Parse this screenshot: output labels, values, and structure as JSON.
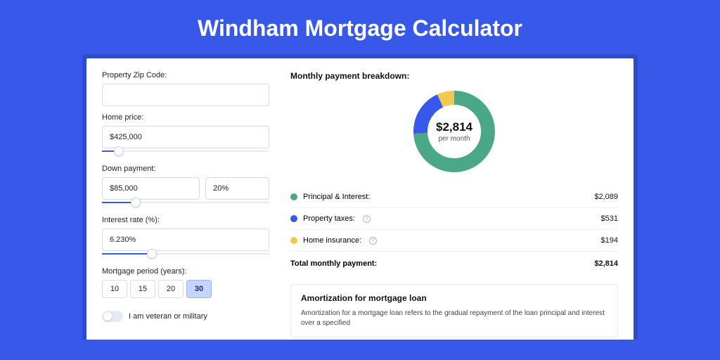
{
  "title": "Windham Mortgage Calculator",
  "colors": {
    "page_bg": "#3858e9",
    "card_bg": "#ffffff",
    "slider_fill": "#3858e9",
    "principal": "#4aa886",
    "taxes": "#3858e9",
    "insurance": "#f2c94c"
  },
  "form": {
    "zip_label": "Property Zip Code:",
    "zip_value": "",
    "home_price_label": "Home price:",
    "home_price_value": "$425,000",
    "home_price_slider_pct": 10,
    "down_label": "Down payment:",
    "down_value": "$85,000",
    "down_pct_value": "20%",
    "down_slider_pct": 20,
    "rate_label": "Interest rate (%):",
    "rate_value": "6.230%",
    "rate_slider_pct": 30,
    "period_label": "Mortgage period (years):",
    "periods": [
      "10",
      "15",
      "20",
      "30"
    ],
    "period_active_index": 3,
    "veteran_label": "I am veteran or military",
    "veteran_on": false
  },
  "breakdown": {
    "title": "Monthly payment breakdown:",
    "total_amount": "$2,814",
    "total_sub": "per month",
    "items": [
      {
        "label": "Principal & Interest:",
        "value": "$2,089",
        "pct": 74,
        "color": "#4aa886",
        "info": false
      },
      {
        "label": "Property taxes:",
        "value": "$531",
        "pct": 19,
        "color": "#3858e9",
        "info": true
      },
      {
        "label": "Home insurance:",
        "value": "$194",
        "pct": 7,
        "color": "#f2c94c",
        "info": true
      }
    ],
    "total_label": "Total monthly payment:",
    "total_value": "$2,814"
  },
  "amort": {
    "title": "Amortization for mortgage loan",
    "text": "Amortization for a mortgage loan refers to the gradual repayment of the loan principal and interest over a specified"
  },
  "donut": {
    "radius": 48,
    "stroke": 20,
    "circumference": 301.59
  }
}
